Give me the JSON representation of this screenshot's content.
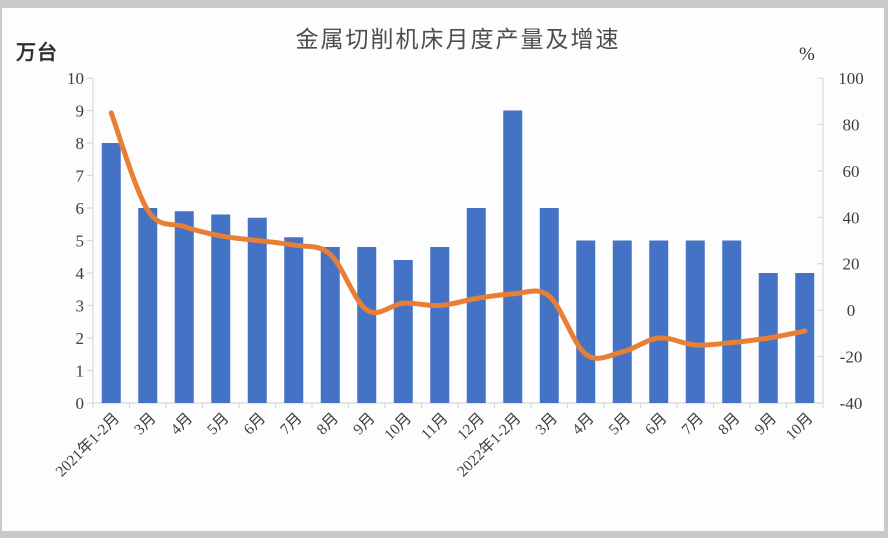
{
  "page": {
    "title": "金属切削机床月度产量及增速",
    "left_axis_unit": "万台",
    "right_axis_unit": "%"
  },
  "chart_data": {
    "type": "bar",
    "subtype": "bar+line-combo",
    "title": "金属切削机床月度产量及增速",
    "categories": [
      "2021年1-2月",
      "3月",
      "4月",
      "5月",
      "6月",
      "7月",
      "8月",
      "9月",
      "10月",
      "11月",
      "12月",
      "2022年1-2月",
      "3月",
      "4月",
      "5月",
      "6月",
      "7月",
      "8月",
      "9月",
      "10月"
    ],
    "series": [
      {
        "name": "月度产量",
        "type": "bar",
        "axis": "left",
        "unit": "万台",
        "color": "#4472C4",
        "values": [
          8,
          6,
          5.9,
          5.8,
          5.7,
          5.1,
          4.8,
          4.8,
          4.4,
          4.8,
          6,
          9,
          6,
          5,
          5,
          5,
          5,
          5,
          4,
          4
        ]
      },
      {
        "name": "增速",
        "type": "line",
        "axis": "right",
        "unit": "%",
        "color": "#E87F35",
        "values": [
          85,
          43,
          36,
          32,
          30,
          28,
          24,
          0,
          3,
          2,
          5,
          7,
          6,
          -19,
          -18,
          -12,
          -15,
          -14,
          -12,
          -9
        ]
      }
    ],
    "left_axis": {
      "label": "万台",
      "min": 0,
      "max": 10,
      "tick_step": 1,
      "ticks": [
        0,
        1,
        2,
        3,
        4,
        5,
        6,
        7,
        8,
        9,
        10
      ]
    },
    "right_axis": {
      "label": "%",
      "min": -40,
      "max": 100,
      "tick_step": 20,
      "ticks": [
        -40,
        -20,
        0,
        20,
        40,
        60,
        80,
        100
      ]
    },
    "grid": false,
    "legend": "none",
    "colors": {
      "bar": "#4472C4",
      "line": "#E87F35",
      "axis": "#d9d9d9",
      "tick_text": "#3d3d3d"
    }
  }
}
